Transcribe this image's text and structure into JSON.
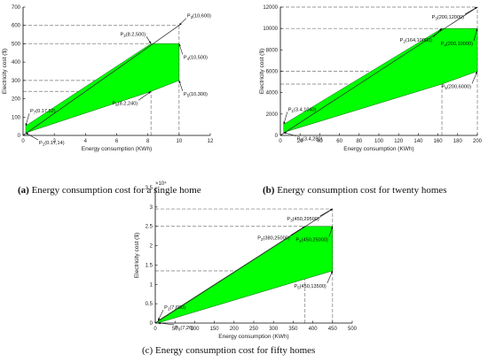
{
  "chart_data": [
    {
      "type": "area",
      "caption_tag": "(a)",
      "caption": "Energy consumption cost for a single home",
      "xlabel": "Energy consumption (KWh)",
      "ylabel": "Electricity cost ($)",
      "xlim": [
        0,
        12
      ],
      "ylim": [
        0,
        700
      ],
      "xticks": [
        0,
        2,
        4,
        6,
        8,
        10,
        12
      ],
      "yticks": [
        0,
        100,
        200,
        300,
        400,
        500,
        600,
        700
      ],
      "ytick_labels": [
        "0",
        "100",
        "200",
        "300",
        "400",
        "500",
        "600",
        "700"
      ],
      "exponent": "",
      "total_line": [
        [
          0,
          0
        ],
        [
          10,
          600
        ]
      ],
      "band_upper": [
        [
          0.17,
          52
        ],
        [
          8.2,
          500
        ],
        [
          10,
          500
        ]
      ],
      "band_lower": [
        [
          0.17,
          14
        ],
        [
          8.2,
          240
        ],
        [
          10,
          300
        ]
      ],
      "guides": [
        [
          8.2,
          0,
          8.2,
          500
        ],
        [
          10,
          0,
          10,
          600
        ],
        [
          0,
          600,
          10,
          600
        ],
        [
          0,
          500,
          8.2,
          500
        ],
        [
          0,
          300,
          10,
          300
        ],
        [
          0,
          240,
          8.2,
          240
        ]
      ],
      "annotations": [
        {
          "id": "P1",
          "sub": "1",
          "text": "(0.17,14)",
          "x": 0.17,
          "y": 14,
          "ox": 14,
          "oy": 8
        },
        {
          "id": "P2",
          "sub": "2",
          "text": "(8.2,500)",
          "x": 8.2,
          "y": 500,
          "ox": -5,
          "oy": -8
        },
        {
          "id": "P3",
          "sub": "3",
          "text": "(10,600)",
          "x": 10,
          "y": 600,
          "ox": 8,
          "oy": -8
        },
        {
          "id": "P4",
          "sub": "4",
          "text": "(10,500)",
          "x": 10,
          "y": 500,
          "ox": 4,
          "oy": 12
        },
        {
          "id": "P5",
          "sub": "5",
          "text": "(10,300)",
          "x": 10,
          "y": 300,
          "ox": 4,
          "oy": 12
        },
        {
          "id": "P6",
          "sub": "6",
          "text": "(8.2,240)",
          "x": 8.2,
          "y": 240,
          "ox": -14,
          "oy": 10
        },
        {
          "id": "P7",
          "sub": "7",
          "text": "(0.17,52)",
          "x": 0.17,
          "y": 52,
          "ox": 4,
          "oy": -14
        }
      ]
    },
    {
      "type": "area",
      "caption_tag": "(b)",
      "caption": "Energy consumption cost for twenty homes",
      "xlabel": "Energy consumption (KWh)",
      "ylabel": "Electricity cost ($)",
      "xlim": [
        0,
        200
      ],
      "ylim": [
        0,
        12000
      ],
      "xticks": [
        0,
        20,
        40,
        60,
        80,
        100,
        120,
        140,
        160,
        180,
        200
      ],
      "yticks": [
        0,
        2000,
        4000,
        6000,
        8000,
        10000,
        12000
      ],
      "ytick_labels": [
        "0",
        "2000",
        "4000",
        "6000",
        "8000",
        "10000",
        "12000"
      ],
      "exponent": "",
      "total_line": [
        [
          0,
          0
        ],
        [
          200,
          12000
        ]
      ],
      "band_upper": [
        [
          3.4,
          1040
        ],
        [
          164,
          10000
        ],
        [
          200,
          10000
        ]
      ],
      "band_lower": [
        [
          3.4,
          280
        ],
        [
          164,
          4800
        ],
        [
          200,
          6000
        ]
      ],
      "guides": [
        [
          164,
          0,
          164,
          10000
        ],
        [
          200,
          0,
          200,
          12000
        ],
        [
          0,
          12000,
          200,
          12000
        ],
        [
          0,
          10000,
          164,
          10000
        ],
        [
          0,
          6000,
          200,
          6000
        ],
        [
          0,
          4800,
          164,
          4800
        ]
      ],
      "annotations": [
        {
          "id": "P1",
          "sub": "1",
          "text": "(3.4,1040)",
          "x": 3.4,
          "y": 1040,
          "ox": 4,
          "oy": -14
        },
        {
          "id": "P2",
          "sub": "2",
          "text": "(164,10000)",
          "x": 164,
          "y": 10000,
          "ox": -10,
          "oy": 10
        },
        {
          "id": "P3",
          "sub": "3",
          "text": "(200,12000)",
          "x": 200,
          "y": 12000,
          "ox": -14,
          "oy": 8
        },
        {
          "id": "P4",
          "sub": "4",
          "text": "(200,10000)",
          "x": 200,
          "y": 10000,
          "ox": -4,
          "oy": 14
        },
        {
          "id": "P5",
          "sub": "5",
          "text": "(200,6000)",
          "x": 200,
          "y": 6000,
          "ox": -6,
          "oy": 14
        },
        {
          "id": "P6",
          "sub": "6",
          "text": "(3.4,280)",
          "x": 3.4,
          "y": 280,
          "ox": 14,
          "oy": 4
        }
      ]
    },
    {
      "type": "area",
      "caption_tag": "(c)",
      "caption": "Energy consumption cost for fifty homes",
      "xlabel": "Energy consumption (KWh)",
      "ylabel": "Electricity cost ($)",
      "xlim": [
        0,
        500
      ],
      "ylim": [
        0,
        35000
      ],
      "xticks": [
        0,
        50,
        100,
        150,
        200,
        250,
        300,
        350,
        400,
        450,
        500
      ],
      "yticks": [
        0,
        5000,
        10000,
        15000,
        20000,
        25000,
        30000,
        35000
      ],
      "ytick_labels": [
        "0",
        "0.5",
        "1",
        "1.5",
        "2",
        "2.5",
        "3",
        "3.5"
      ],
      "exponent": "×10⁴",
      "total_line": [
        [
          0,
          0
        ],
        [
          450,
          29500
        ]
      ],
      "band_upper": [
        [
          7,
          650
        ],
        [
          380,
          25000
        ],
        [
          450,
          25000
        ]
      ],
      "band_lower": [
        [
          7,
          26
        ],
        [
          380,
          11400
        ],
        [
          450,
          13500
        ]
      ],
      "guides": [
        [
          380,
          0,
          380,
          25000
        ],
        [
          450,
          0,
          450,
          29500
        ],
        [
          0,
          29500,
          450,
          29500
        ],
        [
          0,
          25000,
          380,
          25000
        ],
        [
          0,
          13500,
          450,
          13500
        ]
      ],
      "annotations": [
        {
          "id": "P1",
          "sub": "1",
          "text": "(7,650)",
          "x": 7,
          "y": 650,
          "ox": 6,
          "oy": -12
        },
        {
          "id": "P2",
          "sub": "2",
          "text": "(380,25000)",
          "x": 380,
          "y": 25000,
          "ox": -16,
          "oy": 10
        },
        {
          "id": "P3",
          "sub": "3",
          "text": "(450,29500)",
          "x": 450,
          "y": 29500,
          "ox": -14,
          "oy": 8
        },
        {
          "id": "P4",
          "sub": "4",
          "text": "(450,25000)",
          "x": 450,
          "y": 25000,
          "ox": -4,
          "oy": 12
        },
        {
          "id": "P5",
          "sub": "5",
          "text": "(450,13500)",
          "x": 450,
          "y": 13500,
          "ox": -6,
          "oy": 14
        },
        {
          "id": "P6",
          "sub": "6",
          "text": "(7,26)",
          "x": 7,
          "y": 26,
          "ox": 18,
          "oy": 2
        }
      ]
    }
  ]
}
